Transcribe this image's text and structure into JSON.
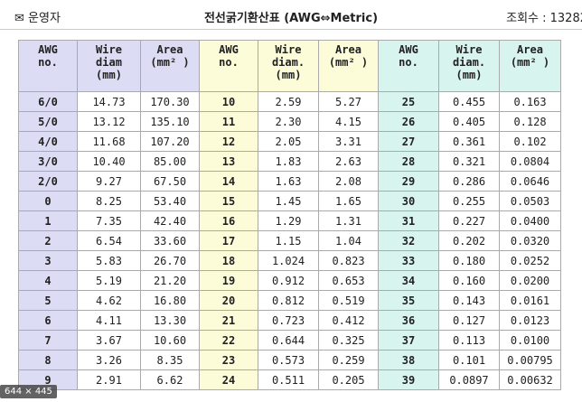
{
  "header": {
    "author": "운영자",
    "title": "전선굵기환산표 (AWG⇔Metric)",
    "views": "조회수 : 13282"
  },
  "table": {
    "headers": [
      "AWG\nno.",
      "Wire\ndiam\n(mm)",
      "Area\n(mm² )",
      "AWG\nno.",
      "Wire\ndiam.\n(mm)",
      "Area\n(mm² )",
      "AWG\nno.",
      "Wire\ndiam.\n(mm)",
      "Area\n(mm² )"
    ],
    "rows": [
      [
        "6/0",
        "14.73",
        "170.30",
        "10",
        "2.59",
        "5.27",
        "25",
        "0.455",
        "0.163"
      ],
      [
        "5/0",
        "13.12",
        "135.10",
        "11",
        "2.30",
        "4.15",
        "26",
        "0.405",
        "0.128"
      ],
      [
        "4/0",
        "11.68",
        "107.20",
        "12",
        "2.05",
        "3.31",
        "27",
        "0.361",
        "0.102"
      ],
      [
        "3/0",
        "10.40",
        "85.00",
        "13",
        "1.83",
        "2.63",
        "28",
        "0.321",
        "0.0804"
      ],
      [
        "2/0",
        "9.27",
        "67.50",
        "14",
        "1.63",
        "2.08",
        "29",
        "0.286",
        "0.0646"
      ],
      [
        "0",
        "8.25",
        "53.40",
        "15",
        "1.45",
        "1.65",
        "30",
        "0.255",
        "0.0503"
      ],
      [
        "1",
        "7.35",
        "42.40",
        "16",
        "1.29",
        "1.31",
        "31",
        "0.227",
        "0.0400"
      ],
      [
        "2",
        "6.54",
        "33.60",
        "17",
        "1.15",
        "1.04",
        "32",
        "0.202",
        "0.0320"
      ],
      [
        "3",
        "5.83",
        "26.70",
        "18",
        "1.024",
        "0.823",
        "33",
        "0.180",
        "0.0252"
      ],
      [
        "4",
        "5.19",
        "21.20",
        "19",
        "0.912",
        "0.653",
        "34",
        "0.160",
        "0.0200"
      ],
      [
        "5",
        "4.62",
        "16.80",
        "20",
        "0.812",
        "0.519",
        "35",
        "0.143",
        "0.0161"
      ],
      [
        "6",
        "4.11",
        "13.30",
        "21",
        "0.723",
        "0.412",
        "36",
        "0.127",
        "0.0123"
      ],
      [
        "7",
        "3.67",
        "10.60",
        "22",
        "0.644",
        "0.325",
        "37",
        "0.113",
        "0.0100"
      ],
      [
        "8",
        "3.26",
        "8.35",
        "23",
        "0.573",
        "0.259",
        "38",
        "0.101",
        "0.00795"
      ],
      [
        "9",
        "2.91",
        "6.62",
        "24",
        "0.511",
        "0.205",
        "39",
        "0.0897",
        "0.00632"
      ]
    ]
  },
  "badge": "644 × 445"
}
